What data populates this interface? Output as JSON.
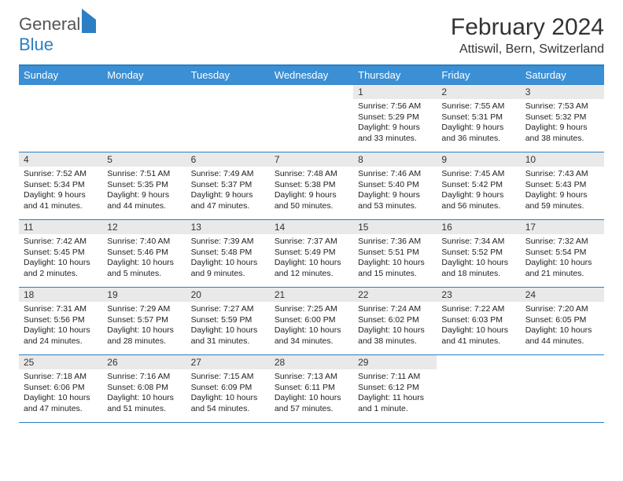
{
  "logo": {
    "text1": "General",
    "text2": "Blue"
  },
  "title": "February 2024",
  "location": "Attiswil, Bern, Switzerland",
  "colors": {
    "accent": "#3b8fd4",
    "border": "#2b7fc4",
    "daynum_bg": "#e9e9e9"
  },
  "weekdays": [
    "Sunday",
    "Monday",
    "Tuesday",
    "Wednesday",
    "Thursday",
    "Friday",
    "Saturday"
  ],
  "weeks": [
    [
      null,
      null,
      null,
      null,
      {
        "n": "1",
        "sr": "7:56 AM",
        "ss": "5:29 PM",
        "dl": "9 hours and 33 minutes."
      },
      {
        "n": "2",
        "sr": "7:55 AM",
        "ss": "5:31 PM",
        "dl": "9 hours and 36 minutes."
      },
      {
        "n": "3",
        "sr": "7:53 AM",
        "ss": "5:32 PM",
        "dl": "9 hours and 38 minutes."
      }
    ],
    [
      {
        "n": "4",
        "sr": "7:52 AM",
        "ss": "5:34 PM",
        "dl": "9 hours and 41 minutes."
      },
      {
        "n": "5",
        "sr": "7:51 AM",
        "ss": "5:35 PM",
        "dl": "9 hours and 44 minutes."
      },
      {
        "n": "6",
        "sr": "7:49 AM",
        "ss": "5:37 PM",
        "dl": "9 hours and 47 minutes."
      },
      {
        "n": "7",
        "sr": "7:48 AM",
        "ss": "5:38 PM",
        "dl": "9 hours and 50 minutes."
      },
      {
        "n": "8",
        "sr": "7:46 AM",
        "ss": "5:40 PM",
        "dl": "9 hours and 53 minutes."
      },
      {
        "n": "9",
        "sr": "7:45 AM",
        "ss": "5:42 PM",
        "dl": "9 hours and 56 minutes."
      },
      {
        "n": "10",
        "sr": "7:43 AM",
        "ss": "5:43 PM",
        "dl": "9 hours and 59 minutes."
      }
    ],
    [
      {
        "n": "11",
        "sr": "7:42 AM",
        "ss": "5:45 PM",
        "dl": "10 hours and 2 minutes."
      },
      {
        "n": "12",
        "sr": "7:40 AM",
        "ss": "5:46 PM",
        "dl": "10 hours and 5 minutes."
      },
      {
        "n": "13",
        "sr": "7:39 AM",
        "ss": "5:48 PM",
        "dl": "10 hours and 9 minutes."
      },
      {
        "n": "14",
        "sr": "7:37 AM",
        "ss": "5:49 PM",
        "dl": "10 hours and 12 minutes."
      },
      {
        "n": "15",
        "sr": "7:36 AM",
        "ss": "5:51 PM",
        "dl": "10 hours and 15 minutes."
      },
      {
        "n": "16",
        "sr": "7:34 AM",
        "ss": "5:52 PM",
        "dl": "10 hours and 18 minutes."
      },
      {
        "n": "17",
        "sr": "7:32 AM",
        "ss": "5:54 PM",
        "dl": "10 hours and 21 minutes."
      }
    ],
    [
      {
        "n": "18",
        "sr": "7:31 AM",
        "ss": "5:56 PM",
        "dl": "10 hours and 24 minutes."
      },
      {
        "n": "19",
        "sr": "7:29 AM",
        "ss": "5:57 PM",
        "dl": "10 hours and 28 minutes."
      },
      {
        "n": "20",
        "sr": "7:27 AM",
        "ss": "5:59 PM",
        "dl": "10 hours and 31 minutes."
      },
      {
        "n": "21",
        "sr": "7:25 AM",
        "ss": "6:00 PM",
        "dl": "10 hours and 34 minutes."
      },
      {
        "n": "22",
        "sr": "7:24 AM",
        "ss": "6:02 PM",
        "dl": "10 hours and 38 minutes."
      },
      {
        "n": "23",
        "sr": "7:22 AM",
        "ss": "6:03 PM",
        "dl": "10 hours and 41 minutes."
      },
      {
        "n": "24",
        "sr": "7:20 AM",
        "ss": "6:05 PM",
        "dl": "10 hours and 44 minutes."
      }
    ],
    [
      {
        "n": "25",
        "sr": "7:18 AM",
        "ss": "6:06 PM",
        "dl": "10 hours and 47 minutes."
      },
      {
        "n": "26",
        "sr": "7:16 AM",
        "ss": "6:08 PM",
        "dl": "10 hours and 51 minutes."
      },
      {
        "n": "27",
        "sr": "7:15 AM",
        "ss": "6:09 PM",
        "dl": "10 hours and 54 minutes."
      },
      {
        "n": "28",
        "sr": "7:13 AM",
        "ss": "6:11 PM",
        "dl": "10 hours and 57 minutes."
      },
      {
        "n": "29",
        "sr": "7:11 AM",
        "ss": "6:12 PM",
        "dl": "11 hours and 1 minute."
      },
      null,
      null
    ]
  ],
  "labels": {
    "sunrise": "Sunrise: ",
    "sunset": "Sunset: ",
    "daylight": "Daylight: "
  }
}
